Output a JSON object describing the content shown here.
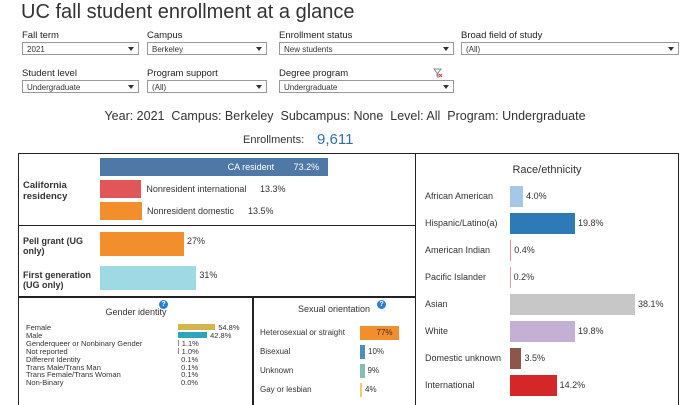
{
  "title": "UC fall student enrollment at a glance",
  "filters": [
    {
      "label": "Fall term",
      "value": "2021"
    },
    {
      "label": "Campus",
      "value": "Berkeley"
    },
    {
      "label": "Enrollment status",
      "value": "New students"
    },
    {
      "label": "Broad field of study",
      "value": "(All)"
    },
    {
      "label": "Student level",
      "value": "Undergraduate"
    },
    {
      "label": "Program support",
      "value": "(All)"
    },
    {
      "label": "Degree program",
      "value": "Undergraduate"
    }
  ],
  "summary": "Year: 2021  Campus: Berkeley  Subcampus: None  Level: All  Program: Undergraduate",
  "enrollments": {
    "label": "Enrollments:",
    "value": "9,611"
  },
  "residency": {
    "type": "bar",
    "title": "California residency",
    "categories": [
      "CA resident",
      "Nonresident international",
      "Nonresident domestic"
    ],
    "values": [
      73.2,
      13.3,
      13.5
    ],
    "value_labels": [
      "73.2%",
      "13.3%",
      "13.5%"
    ],
    "colors": [
      "#4e79a7",
      "#e15759",
      "#f28e2b"
    ]
  },
  "support": {
    "type": "bar",
    "categories": [
      "Pell grant (UG only)",
      "First generation (UG only)"
    ],
    "values": [
      27,
      31
    ],
    "value_labels": [
      "27%",
      "31%"
    ],
    "colors": [
      "#f28e2b",
      "#9fd9e3"
    ]
  },
  "gender": {
    "type": "bar",
    "title": "Gender identity",
    "categories": [
      "Female",
      "Male",
      "Genderqueer or Nonbinary Gender",
      "Not reported",
      "Different Identity",
      "Trans Male/Trans Man",
      "Trans Female/Trans Woman",
      "Non-Binary"
    ],
    "values": [
      54.8,
      42.8,
      1.1,
      1.0,
      0.1,
      0.1,
      0.1,
      0.0
    ],
    "value_labels": [
      "54.8%",
      "42.8%",
      "1.1%",
      "1.0%",
      "0.1%",
      "0.1%",
      "0.1%",
      "0.0%"
    ],
    "colors": [
      "#d4b54a",
      "#2ca6b8",
      "#8c8c8c",
      "#8c8c8c",
      "#8c8c8c",
      "#8c8c8c",
      "#8c8c8c",
      "#8c8c8c"
    ]
  },
  "orientation": {
    "type": "bar",
    "title": "Sexual orientation",
    "categories": [
      "Heterosexual or straight",
      "Bisexual",
      "Unknown",
      "Gay or lesbian"
    ],
    "values": [
      77,
      10,
      9,
      4
    ],
    "value_labels": [
      "77%",
      "10%",
      "9%",
      "4%"
    ],
    "colors": [
      "#f28e2b",
      "#4e8fc0",
      "#86bcb6",
      "#f1ce63"
    ]
  },
  "race": {
    "type": "bar",
    "title": "Race/ethnicity",
    "categories": [
      "African American",
      "Hispanic/Latino(a)",
      "American Indian",
      "Pacific Islander",
      "Asian",
      "White",
      "Domestic unknown",
      "International"
    ],
    "values": [
      4.0,
      19.8,
      0.4,
      0.2,
      38.1,
      19.8,
      3.5,
      14.2
    ],
    "value_labels": [
      "4.0%",
      "19.8%",
      "0.4%",
      "0.2%",
      "38.1%",
      "19.8%",
      "3.5%",
      "14.2%"
    ],
    "colors": [
      "#a6c8e8",
      "#2c7bb6",
      "#e58e9b",
      "#e0a0a0",
      "#c7c7c7",
      "#c5b0d5",
      "#8c564b",
      "#d62728"
    ]
  }
}
